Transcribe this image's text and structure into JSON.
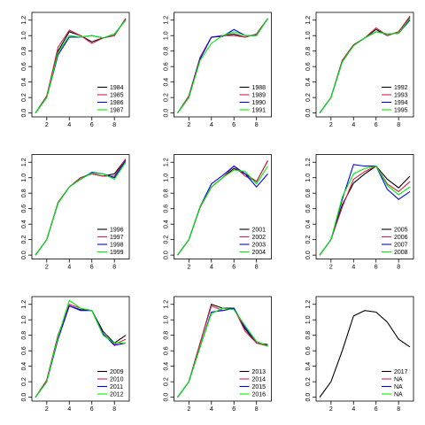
{
  "chart_data": [
    {
      "type": "line",
      "x": [
        1,
        2,
        3,
        4,
        5,
        6,
        7,
        8,
        9
      ],
      "xlim": [
        0.68,
        9.32
      ],
      "xticks": [
        2,
        4,
        6,
        8
      ],
      "ylim": [
        -0.05,
        1.3
      ],
      "yticks": [
        {
          "value": 0,
          "label": "0.0"
        },
        0.2,
        0.4,
        0.6,
        0.8,
        {
          "value": 1,
          "label": "1.0"
        },
        1.2
      ],
      "legend": "bottomright",
      "series": [
        {
          "name": "1984",
          "color": "#000000",
          "values": [
            0,
            0.22,
            0.8,
            1.05,
            1.0,
            0.92,
            0.97,
            1.0,
            1.22
          ]
        },
        {
          "name": "1985",
          "color": "#d6204b",
          "values": [
            0,
            0.22,
            0.85,
            1.07,
            1.0,
            0.9,
            0.97,
            1.0,
            1.22
          ]
        },
        {
          "name": "1986",
          "color": "#0000ff",
          "values": [
            0,
            0.2,
            0.75,
            0.98,
            0.98,
            1.0,
            0.97,
            1.02,
            1.2
          ]
        },
        {
          "name": "1987",
          "color": "#00ee00",
          "values": [
            0,
            0.2,
            0.78,
            1.0,
            0.98,
            1.0,
            0.97,
            1.02,
            1.2
          ]
        }
      ]
    },
    {
      "type": "line",
      "x": [
        1,
        2,
        3,
        4,
        5,
        6,
        7,
        8,
        9
      ],
      "xlim": [
        0.68,
        9.32
      ],
      "xticks": [
        2,
        4,
        6,
        8
      ],
      "ylim": [
        -0.05,
        1.3
      ],
      "yticks": [
        {
          "value": 0,
          "label": "0.0"
        },
        0.2,
        0.4,
        0.6,
        0.8,
        {
          "value": 1,
          "label": "1.0"
        },
        1.2
      ],
      "legend": "bottomright",
      "series": [
        {
          "name": "1988",
          "color": "#000000",
          "values": [
            0,
            0.22,
            0.72,
            0.98,
            1.0,
            1.02,
            0.98,
            1.02,
            1.22
          ]
        },
        {
          "name": "1989",
          "color": "#d6204b",
          "values": [
            0,
            0.22,
            0.72,
            0.98,
            1.0,
            1.0,
            0.98,
            1.02,
            1.22
          ]
        },
        {
          "name": "1990",
          "color": "#0000ff",
          "values": [
            0,
            0.2,
            0.7,
            0.98,
            0.99,
            1.08,
            1.0,
            1.0,
            1.22
          ]
        },
        {
          "name": "1991",
          "color": "#00ee00",
          "values": [
            0,
            0.2,
            0.68,
            0.9,
            1.0,
            1.05,
            1.0,
            1.0,
            1.22
          ]
        }
      ]
    },
    {
      "type": "line",
      "x": [
        1,
        2,
        3,
        4,
        5,
        6,
        7,
        8,
        9
      ],
      "xlim": [
        0.68,
        9.32
      ],
      "xticks": [
        2,
        4,
        6,
        8
      ],
      "ylim": [
        -0.05,
        1.3
      ],
      "yticks": [
        {
          "value": 0,
          "label": "0.0"
        },
        0.2,
        0.4,
        0.6,
        0.8,
        {
          "value": 1,
          "label": "1.0"
        },
        1.2
      ],
      "legend": "bottomright",
      "series": [
        {
          "name": "1992",
          "color": "#000000",
          "values": [
            0,
            0.2,
            0.68,
            0.88,
            0.97,
            1.08,
            1.0,
            1.05,
            1.24
          ]
        },
        {
          "name": "1993",
          "color": "#d6204b",
          "values": [
            0,
            0.2,
            0.68,
            0.88,
            0.97,
            1.1,
            1.0,
            1.05,
            1.25
          ]
        },
        {
          "name": "1994",
          "color": "#0000ff",
          "values": [
            0,
            0.2,
            0.66,
            0.87,
            0.97,
            1.05,
            1.02,
            1.03,
            1.2
          ]
        },
        {
          "name": "1995",
          "color": "#00ee00",
          "values": [
            0,
            0.2,
            0.66,
            0.87,
            0.97,
            1.05,
            1.02,
            1.03,
            1.22
          ]
        }
      ]
    },
    {
      "type": "line",
      "x": [
        1,
        2,
        3,
        4,
        5,
        6,
        7,
        8,
        9
      ],
      "xlim": [
        0.68,
        9.32
      ],
      "xticks": [
        2,
        4,
        6,
        8
      ],
      "ylim": [
        -0.05,
        1.3
      ],
      "yticks": [
        {
          "value": 0,
          "label": "0.0"
        },
        0.2,
        0.4,
        0.6,
        0.8,
        {
          "value": 1,
          "label": "1.0"
        },
        1.2
      ],
      "legend": "bottomright",
      "series": [
        {
          "name": "1996",
          "color": "#000000",
          "values": [
            0,
            0.2,
            0.68,
            0.88,
            1.0,
            1.05,
            1.02,
            1.05,
            1.24
          ]
        },
        {
          "name": "1997",
          "color": "#d6204b",
          "values": [
            0,
            0.2,
            0.68,
            0.88,
            1.0,
            1.05,
            1.02,
            1.02,
            1.24
          ]
        },
        {
          "name": "1998",
          "color": "#0000ff",
          "values": [
            0,
            0.2,
            0.67,
            0.88,
            0.98,
            1.07,
            1.05,
            1.0,
            1.22
          ]
        },
        {
          "name": "1999",
          "color": "#00ee00",
          "values": [
            0,
            0.2,
            0.67,
            0.88,
            0.98,
            1.06,
            1.05,
            0.98,
            1.2
          ]
        }
      ]
    },
    {
      "type": "line",
      "x": [
        1,
        2,
        3,
        4,
        5,
        6,
        7,
        8,
        9
      ],
      "xlim": [
        0.68,
        9.32
      ],
      "xticks": [
        2,
        4,
        6,
        8
      ],
      "ylim": [
        -0.05,
        1.3
      ],
      "yticks": [
        {
          "value": 0,
          "label": "0.0"
        },
        0.2,
        0.4,
        0.6,
        0.8,
        {
          "value": 1,
          "label": "1.0"
        },
        1.2
      ],
      "legend": "bottomright",
      "series": [
        {
          "name": "2001",
          "color": "#000000",
          "values": [
            0,
            0.2,
            0.62,
            0.88,
            1.0,
            1.12,
            1.05,
            0.95,
            1.22
          ]
        },
        {
          "name": "2002",
          "color": "#d6204b",
          "values": [
            0,
            0.2,
            0.62,
            0.88,
            1.0,
            1.15,
            1.02,
            0.95,
            1.22
          ]
        },
        {
          "name": "2003",
          "color": "#0000ff",
          "values": [
            0,
            0.2,
            0.63,
            0.92,
            1.03,
            1.15,
            1.05,
            0.88,
            1.05
          ]
        },
        {
          "name": "2004",
          "color": "#00ee00",
          "values": [
            0,
            0.2,
            0.63,
            0.88,
            1.0,
            1.1,
            1.08,
            0.92,
            1.15
          ]
        }
      ]
    },
    {
      "type": "line",
      "x": [
        1,
        2,
        3,
        4,
        5,
        6,
        7,
        8,
        9
      ],
      "xlim": [
        0.68,
        9.32
      ],
      "xticks": [
        2,
        4,
        6,
        8
      ],
      "ylim": [
        -0.05,
        1.3
      ],
      "yticks": [
        {
          "value": 0,
          "label": "0.0"
        },
        0.2,
        0.4,
        0.6,
        0.8,
        {
          "value": 1,
          "label": "1.0"
        },
        1.2
      ],
      "legend": "bottomright",
      "series": [
        {
          "name": "2005",
          "color": "#000000",
          "values": [
            0,
            0.2,
            0.65,
            0.93,
            1.05,
            1.15,
            0.98,
            0.87,
            1.02
          ]
        },
        {
          "name": "2006",
          "color": "#d6204b",
          "values": [
            0,
            0.2,
            0.62,
            0.98,
            1.08,
            1.15,
            0.92,
            0.82,
            0.95
          ]
        },
        {
          "name": "2007",
          "color": "#0000ff",
          "values": [
            0,
            0.2,
            0.72,
            1.17,
            1.15,
            1.15,
            0.85,
            0.72,
            0.82
          ]
        },
        {
          "name": "2008",
          "color": "#00ee00",
          "values": [
            0,
            0.2,
            0.75,
            1.05,
            1.12,
            1.15,
            0.9,
            0.78,
            0.88
          ]
        }
      ]
    },
    {
      "type": "line",
      "x": [
        1,
        2,
        3,
        4,
        5,
        6,
        7,
        8,
        9
      ],
      "xlim": [
        0.68,
        9.32
      ],
      "xticks": [
        2,
        4,
        6,
        8
      ],
      "ylim": [
        -0.05,
        1.3
      ],
      "yticks": [
        {
          "value": 0,
          "label": "0.0"
        },
        0.2,
        0.4,
        0.6,
        0.8,
        {
          "value": 1,
          "label": "1.0"
        },
        1.2
      ],
      "legend": "bottomright",
      "series": [
        {
          "name": "2009",
          "color": "#000000",
          "values": [
            0,
            0.22,
            0.8,
            1.18,
            1.13,
            1.12,
            0.85,
            0.7,
            0.8
          ]
        },
        {
          "name": "2010",
          "color": "#d6204b",
          "values": [
            0,
            0.22,
            0.8,
            1.2,
            1.15,
            1.12,
            0.82,
            0.68,
            0.75
          ]
        },
        {
          "name": "2011",
          "color": "#0000ff",
          "values": [
            0,
            0.2,
            0.75,
            1.18,
            1.12,
            1.12,
            0.82,
            0.67,
            0.7
          ]
        },
        {
          "name": "2012",
          "color": "#00ee00",
          "values": [
            0,
            0.2,
            0.78,
            1.25,
            1.15,
            1.12,
            0.8,
            0.7,
            0.7
          ]
        }
      ]
    },
    {
      "type": "line",
      "x": [
        1,
        2,
        3,
        4,
        5,
        6,
        7,
        8,
        9
      ],
      "xlim": [
        0.68,
        9.32
      ],
      "xticks": [
        2,
        4,
        6,
        8
      ],
      "ylim": [
        -0.05,
        1.3
      ],
      "yticks": [
        {
          "value": 0,
          "label": "0.0"
        },
        0.2,
        0.4,
        0.6,
        0.8,
        {
          "value": 1,
          "label": "1.0"
        },
        1.2
      ],
      "legend": "bottomright",
      "series": [
        {
          "name": "2013",
          "color": "#000000",
          "values": [
            0,
            0.2,
            0.7,
            1.2,
            1.15,
            1.15,
            0.88,
            0.7,
            0.68
          ]
        },
        {
          "name": "2014",
          "color": "#d6204b",
          "values": [
            0,
            0.2,
            0.7,
            1.18,
            1.12,
            1.15,
            0.85,
            0.7,
            0.66
          ]
        },
        {
          "name": "2015",
          "color": "#0000ff",
          "values": [
            0,
            0.2,
            0.65,
            1.1,
            1.12,
            1.15,
            0.9,
            0.72,
            0.66
          ]
        },
        {
          "name": "2016",
          "color": "#00ee00",
          "values": [
            0,
            0.2,
            0.65,
            1.08,
            1.15,
            1.13,
            0.92,
            0.72,
            0.66
          ]
        }
      ]
    },
    {
      "type": "line",
      "x": [
        1,
        2,
        3,
        4,
        5,
        6,
        7,
        8,
        9
      ],
      "xlim": [
        0.68,
        9.32
      ],
      "xticks": [
        2,
        4,
        6,
        8
      ],
      "ylim": [
        -0.05,
        1.3
      ],
      "yticks": [
        {
          "value": 0,
          "label": "0.0"
        },
        0.2,
        0.4,
        0.6,
        0.8,
        {
          "value": 1,
          "label": "1.0"
        },
        1.2
      ],
      "legend": "bottomright",
      "series": [
        {
          "name": "2017",
          "color": "#000000",
          "values": [
            0,
            0.2,
            0.6,
            1.05,
            1.12,
            1.1,
            0.97,
            0.75,
            0.65
          ]
        },
        {
          "name": "NA",
          "color": "#d6204b",
          "values": [
            null,
            null,
            null,
            null,
            null,
            null,
            null,
            null,
            null
          ]
        },
        {
          "name": "NA",
          "color": "#0000ff",
          "values": [
            null,
            null,
            null,
            null,
            null,
            null,
            null,
            null,
            null
          ]
        },
        {
          "name": "NA",
          "color": "#00ee00",
          "values": [
            null,
            null,
            null,
            null,
            null,
            null,
            null,
            null,
            null
          ]
        }
      ]
    }
  ]
}
